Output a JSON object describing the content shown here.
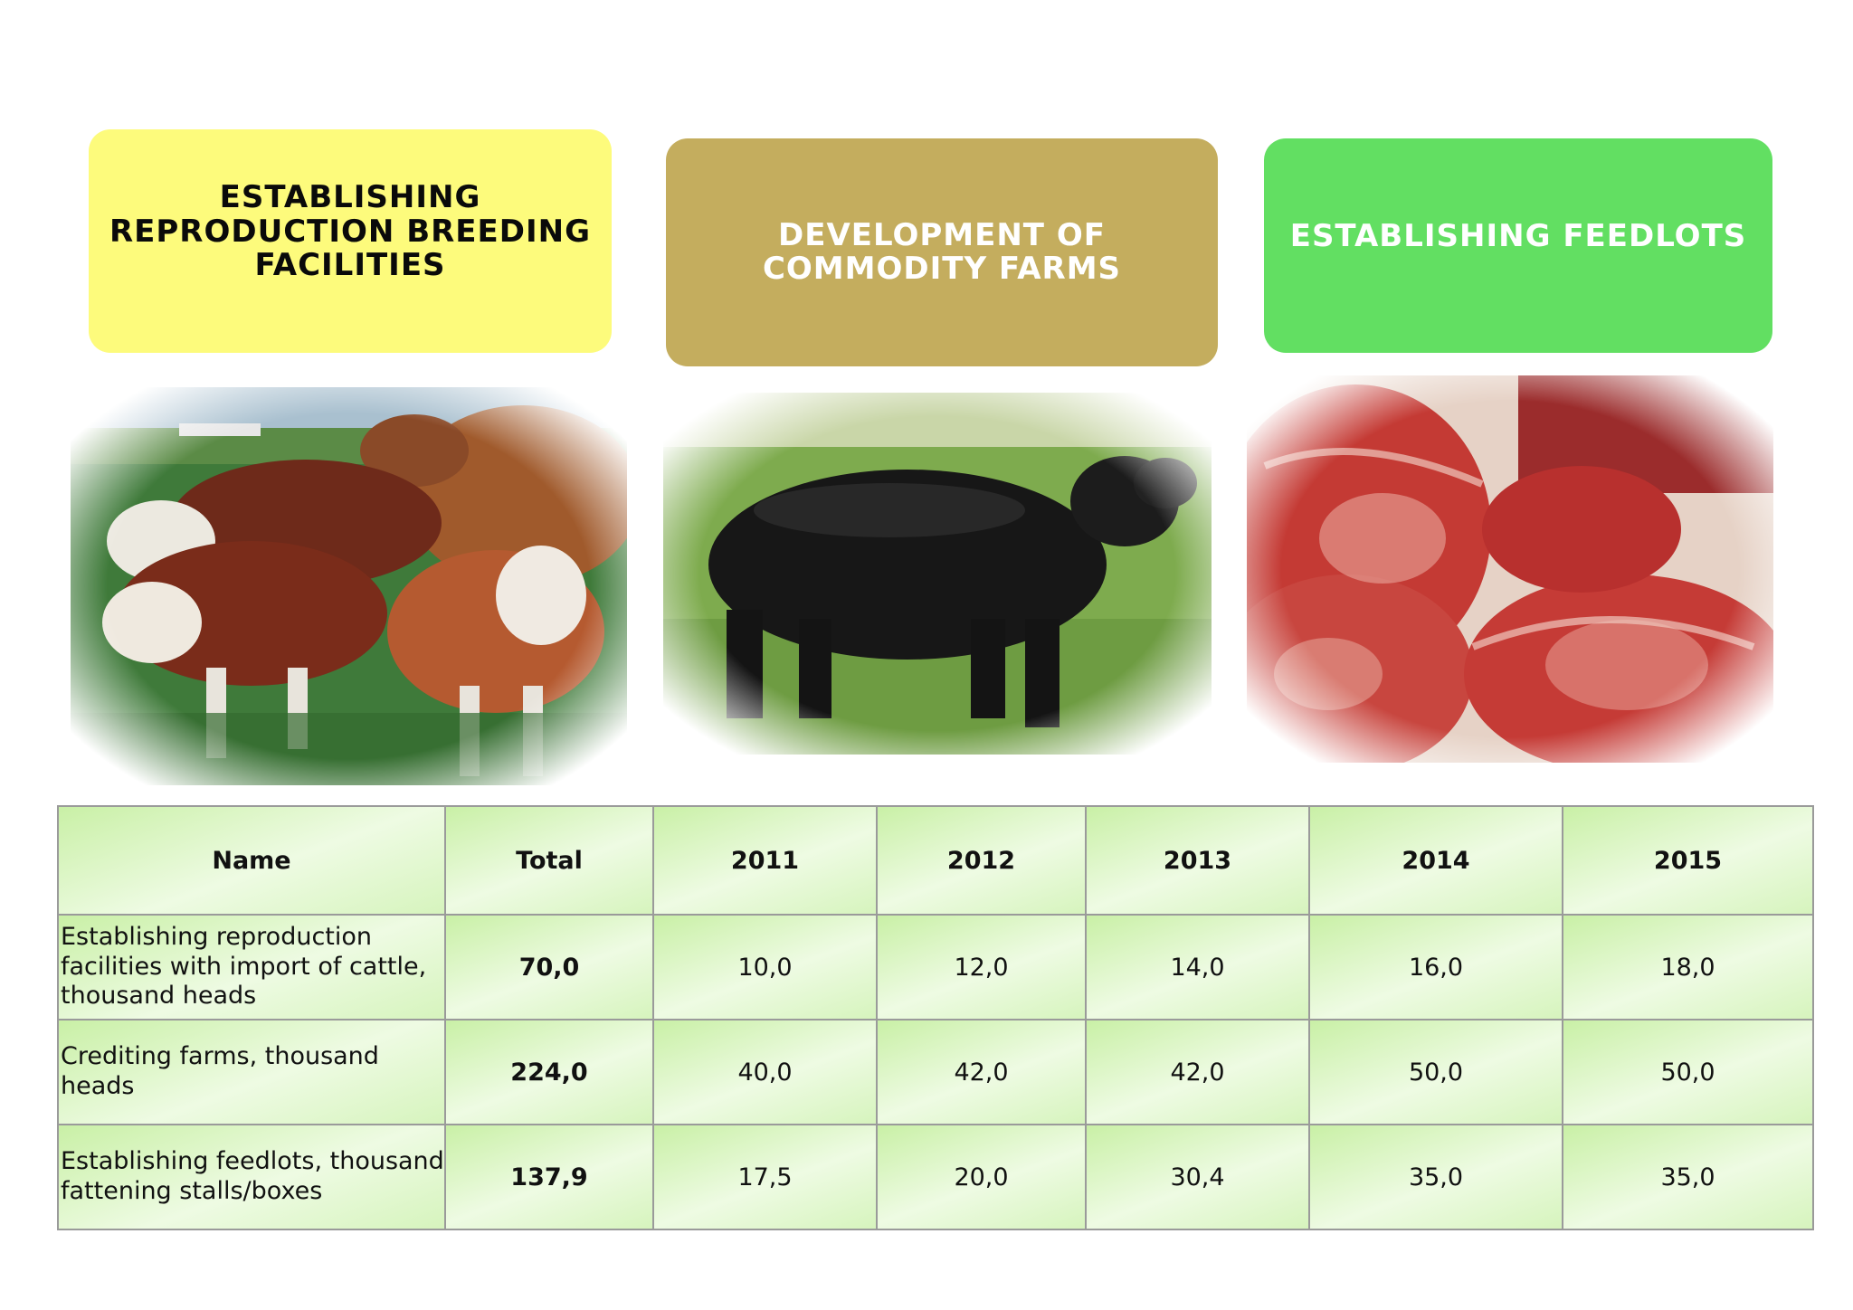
{
  "boxes": {
    "b1": "ESTABLISHING REPRODUCTION BREEDING FACILITIES",
    "b2": "DEVELOPMENT OF COMMODITY FARMS",
    "b3": "ESTABLISHING FEEDLOTS"
  },
  "photos": {
    "p1": "herd-of-hereford-cattle",
    "p2": "black-angus-bull",
    "p3": "raw-beef-steaks"
  },
  "table": {
    "headers": [
      "Name",
      "Total",
      "2011",
      "2012",
      "2013",
      "2014",
      "2015"
    ],
    "rows": [
      [
        "Establishing reproduction facilities with import of cattle, thousand heads",
        "70,0",
        "10,0",
        "12,0",
        "14,0",
        "16,0",
        "18,0"
      ],
      [
        "Crediting farms, thousand heads",
        "224,0",
        "40,0",
        "42,0",
        "42,0",
        "50,0",
        "50,0"
      ],
      [
        "Establishing feedlots, thousand fattening stalls/boxes",
        "137,9",
        "17,5",
        "20,0",
        "30,4",
        "35,0",
        "35,0"
      ]
    ]
  }
}
